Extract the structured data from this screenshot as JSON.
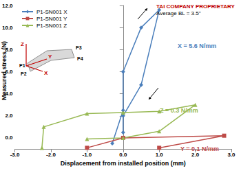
{
  "chart_data": {
    "type": "line",
    "title": "TAI COMPANY PROPRIETARY",
    "subtitle": "Average BL = 3.5\"",
    "x_label": "Displacement from installed position (mm)",
    "y_label": "Measured stress (N)",
    "xlim": [
      -3,
      3
    ],
    "xticks": [
      {
        "value": -3,
        "label": "-3.0"
      },
      {
        "value": -2,
        "label": "-2.0"
      },
      {
        "value": -1,
        "label": "-1.0"
      },
      {
        "value": 0,
        "label": "0.0"
      },
      {
        "value": 1,
        "label": "1.0"
      },
      {
        "value": 2,
        "label": "2.0"
      },
      {
        "value": 3,
        "label": "3.0"
      }
    ],
    "ylim": [
      -1,
      12
    ],
    "yticks": [
      {
        "value": 0,
        "label": "0.0"
      },
      {
        "value": 2,
        "label": "2.0"
      },
      {
        "value": 4,
        "label": "4.0"
      },
      {
        "value": 6,
        "label": "6.0"
      },
      {
        "value": 8,
        "label": "8.0"
      },
      {
        "value": 10,
        "label": "10.0"
      },
      {
        "value": 12,
        "label": "12.0"
      }
    ],
    "grid": false,
    "legend": "top-left",
    "series": [
      {
        "name": "P1-SN001 X",
        "color": "#4a7ebb",
        "marker": "diamond",
        "x": [
          -0.3,
          0.0,
          0.0,
          0.5,
          1.0,
          0.5,
          0.0,
          0.0
        ],
        "values": [
          -0.5,
          2.5,
          6.0,
          10.0,
          11.6,
          4.8,
          2.0,
          0.5
        ]
      },
      {
        "name": "P1-SN001 Y",
        "color": "#be4b48",
        "marker": "square",
        "x": [
          -1.0,
          0.0,
          2.8,
          1.0
        ],
        "values": [
          -0.9,
          0.0,
          0.2,
          -0.9
        ]
      },
      {
        "name": "P1-SN001 Z",
        "color": "#98b954",
        "marker": "triangle",
        "x": [
          -2.25,
          -2.2,
          -1.0,
          0.0,
          1.0,
          2.0,
          1.0,
          0.0,
          -1.0
        ],
        "values": [
          -0.9,
          1.0,
          2.2,
          2.3,
          2.4,
          3.0,
          0.6,
          0.0,
          -0.1
        ]
      }
    ],
    "annotations": [
      {
        "text": "X = 5.6 N/mm",
        "color": "#4a7ebb"
      },
      {
        "text": "Z = 0.3 N/mm",
        "color": "#98b954"
      },
      {
        "text": "Y = 0.1 N/mm",
        "color": "#be4b48"
      }
    ],
    "inset_labels": [
      "Z",
      "Y",
      "X",
      "P1",
      "P2",
      "P3",
      "P4"
    ]
  }
}
